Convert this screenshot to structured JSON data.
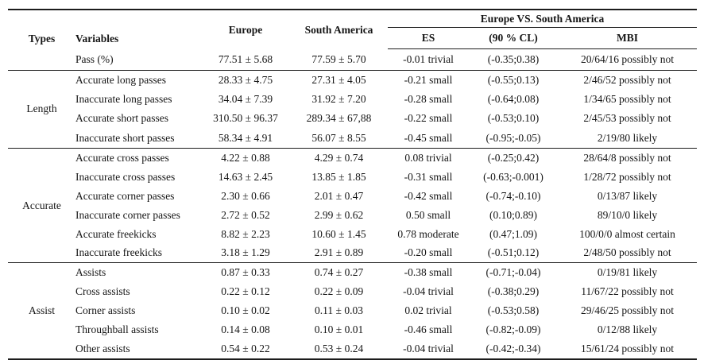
{
  "table": {
    "group_header": "Europe VS. South America",
    "headers": {
      "types": "Types",
      "variables": "Variables",
      "europe": "Europe",
      "south_america": "South America",
      "es": "ES",
      "cl": "(90 % CL)",
      "mbi": "MBI"
    },
    "sections": [
      {
        "type": "",
        "key": "pass",
        "rows": [
          {
            "variable": "Pass (%)",
            "europe": "77.51 ± 5.68",
            "south_america": "77.59 ± 5.70",
            "es": "-0.01 trivial",
            "cl": "(-0.35;0.38)",
            "mbi": "20/64/16 possibly not"
          }
        ]
      },
      {
        "type": "Length",
        "key": "length",
        "rows": [
          {
            "variable": "Accurate long passes",
            "europe": "28.33 ± 4.75",
            "south_america": "27.31 ± 4.05",
            "es": "-0.21 small",
            "cl": "(-0.55;0.13)",
            "mbi": "2/46/52 possibly not"
          },
          {
            "variable": "Inaccurate long passes",
            "europe": "34.04 ± 7.39",
            "south_america": "31.92 ± 7.20",
            "es": "-0.28 small",
            "cl": "(-0.64;0.08)",
            "mbi": "1/34/65 possibly not"
          },
          {
            "variable": "Accurate short passes",
            "europe": "310.50 ± 96.37",
            "south_america": "289.34 ± 67,88",
            "es": "-0.22 small",
            "cl": "(-0.53;0.10)",
            "mbi": "2/45/53 possibly not"
          },
          {
            "variable": "Inaccurate short passes",
            "europe": "58.34 ± 4.91",
            "south_america": "56.07 ± 8.55",
            "es": "-0.45 small",
            "cl": "(-0.95;-0.05)",
            "mbi": "2/19/80 likely"
          }
        ]
      },
      {
        "type": "Accurate",
        "key": "accurate",
        "rows": [
          {
            "variable": "Accurate cross passes",
            "europe": "4.22 ± 0.88",
            "south_america": "4.29 ± 0.74",
            "es": "0.08 trivial",
            "cl": "(-0.25;0.42)",
            "mbi": "28/64/8 possibly not"
          },
          {
            "variable": "Inaccurate cross passes",
            "europe": "14.63 ± 2.45",
            "south_america": "13.85 ± 1.85",
            "es": "-0.31 small",
            "cl": "(-0.63;-0.001)",
            "mbi": "1/28/72 possibly not"
          },
          {
            "variable": "Accurate corner passes",
            "europe": "2.30 ± 0.66",
            "south_america": "2.01 ± 0.47",
            "es": "-0.42 small",
            "cl": "(-0.74;-0.10)",
            "mbi": "0/13/87 likely"
          },
          {
            "variable": "Inaccurate corner passes",
            "europe": "2.72 ± 0.52",
            "south_america": "2.99 ± 0.62",
            "es": "0.50 small",
            "cl": "(0.10;0.89)",
            "mbi": "89/10/0 likely"
          },
          {
            "variable": "Accurate freekicks",
            "europe": "8.82 ± 2.23",
            "south_america": "10.60 ± 1.45",
            "es": "0.78 moderate",
            "cl": "(0.47;1.09)",
            "mbi": "100/0/0 almost certain"
          },
          {
            "variable": "Inaccurate freekicks",
            "europe": "3.18 ± 1.29",
            "south_america": "2.91 ± 0.89",
            "es": "-0.20 small",
            "cl": "(-0.51;0.12)",
            "mbi": "2/48/50 possibly not"
          }
        ]
      },
      {
        "type": "Assist",
        "key": "assist",
        "rows": [
          {
            "variable": "Assists",
            "europe": "0.87 ± 0.33",
            "south_america": "0.74 ± 0.27",
            "es": "-0.38 small",
            "cl": "(-0.71;-0.04)",
            "mbi": "0/19/81 likely"
          },
          {
            "variable": "Cross assists",
            "europe": "0.22 ± 0.12",
            "south_america": "0.22 ± 0.09",
            "es": "-0.04 trivial",
            "cl": "(-0.38;0.29)",
            "mbi": "11/67/22 possibly not"
          },
          {
            "variable": "Corner assists",
            "europe": "0.10 ± 0.02",
            "south_america": "0.11 ± 0.03",
            "es": "0.02 trivial",
            "cl": "(-0.53;0.58)",
            "mbi": "29/46/25 possibly not"
          },
          {
            "variable": "Throughball assists",
            "europe": "0.14 ± 0.08",
            "south_america": "0.10 ± 0.01",
            "es": "-0.46 small",
            "cl": "(-0.82;-0.09)",
            "mbi": "0/12/88 likely"
          },
          {
            "variable": "Other assists",
            "europe": "0.54 ± 0.22",
            "south_america": "0.53 ± 0.24",
            "es": "-0.04 trivial",
            "cl": "(-0.42;-0.34)",
            "mbi": "15/61/24 possibly not"
          }
        ]
      }
    ]
  }
}
